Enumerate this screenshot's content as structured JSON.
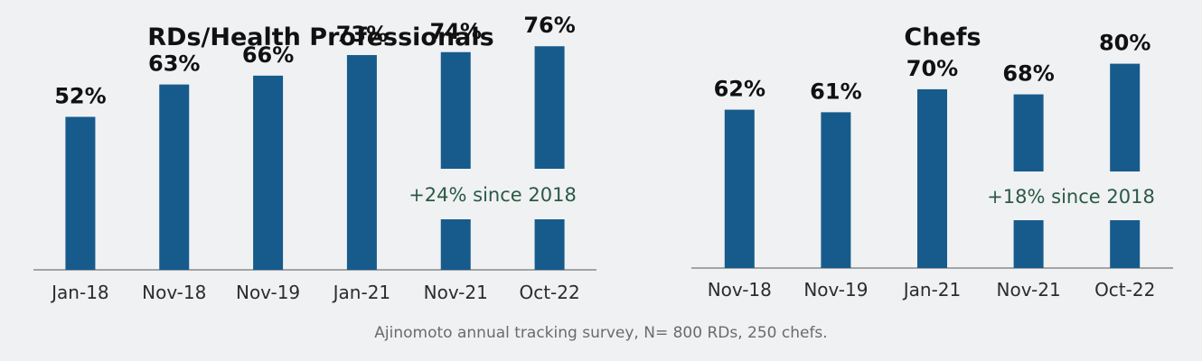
{
  "colors": {
    "bar": "#175b8c",
    "background": "#f0f1f3",
    "annotation": "#2a5a44",
    "axis": "#8a8a8a"
  },
  "chart_data": [
    {
      "type": "bar",
      "title": "RDs/Health Professionals",
      "categories": [
        "Jan-18",
        "Nov-18",
        "Nov-19",
        "Jan-21",
        "Nov-21",
        "Oct-22"
      ],
      "values": [
        52,
        63,
        66,
        73,
        74,
        76
      ],
      "value_labels": [
        "52%",
        "63%",
        "66%",
        "73%",
        "74%",
        "76%"
      ],
      "annotation": "+24% since 2018",
      "xlabel": "",
      "ylabel": "",
      "ylim": [
        0,
        100
      ],
      "grid": false,
      "legend": "none"
    },
    {
      "type": "bar",
      "title": "Chefs",
      "categories": [
        "Nov-18",
        "Nov-19",
        "Jan-21",
        "Nov-21",
        "Oct-22"
      ],
      "values": [
        62,
        61,
        70,
        68,
        80
      ],
      "value_labels": [
        "62%",
        "61%",
        "70%",
        "68%",
        "80%"
      ],
      "annotation": "+18% since 2018",
      "xlabel": "",
      "ylabel": "",
      "ylim": [
        0,
        100
      ],
      "grid": false,
      "legend": "none"
    }
  ],
  "caption": "Ajinomoto annual tracking survey, N= 800 RDs, 250 chefs."
}
